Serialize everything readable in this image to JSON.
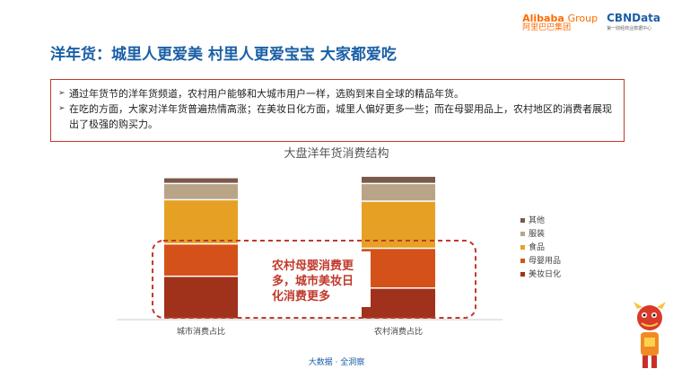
{
  "header": {
    "alibaba_logo": "Alibaba",
    "alibaba_group": "Group",
    "alibaba_cn": "阿里巴巴集团",
    "cbn_logo": "CBNData",
    "cbn_tagline": "第一财经商业数据中心"
  },
  "title": "洋年货：城里人更爱美 村里人更爱宝宝 大家都爱吃",
  "summary": {
    "bullets": [
      "通过年货节的洋年货频道，农村用户能够和大城市用户一样，选购到来自全球的精品年货。",
      "在吃的方面，大家对洋年货普遍热情高涨；在美妆日化方面，城里人偏好更多一些；而在母婴用品上，农村地区的消费者展现出了极强的购买力。"
    ]
  },
  "chart_data": {
    "type": "bar",
    "stacked": true,
    "title": "大盘洋年货消费结构",
    "categories": [
      "城市消费占比",
      "农村消费占比"
    ],
    "series": [
      {
        "name": "美妆日化",
        "values": [
          29,
          21
        ],
        "color": "#a0311a"
      },
      {
        "name": "母婴用品",
        "values": [
          22,
          27
        ],
        "color": "#d4521a"
      },
      {
        "name": "食品",
        "values": [
          30,
          32
        ],
        "color": "#e6a125"
      },
      {
        "name": "服装",
        "values": [
          11,
          12
        ],
        "color": "#b9a488"
      },
      {
        "name": "其他",
        "values": [
          4,
          5
        ],
        "color": "#7a5a4a"
      }
    ],
    "ylim": [
      0,
      100
    ],
    "grid": false,
    "legend_position": "right",
    "annotation": "农村母婴消费更多，城市美妆日化消费更多",
    "accent_color": "#c0392b"
  },
  "footer": "大数据 · 全洞察"
}
